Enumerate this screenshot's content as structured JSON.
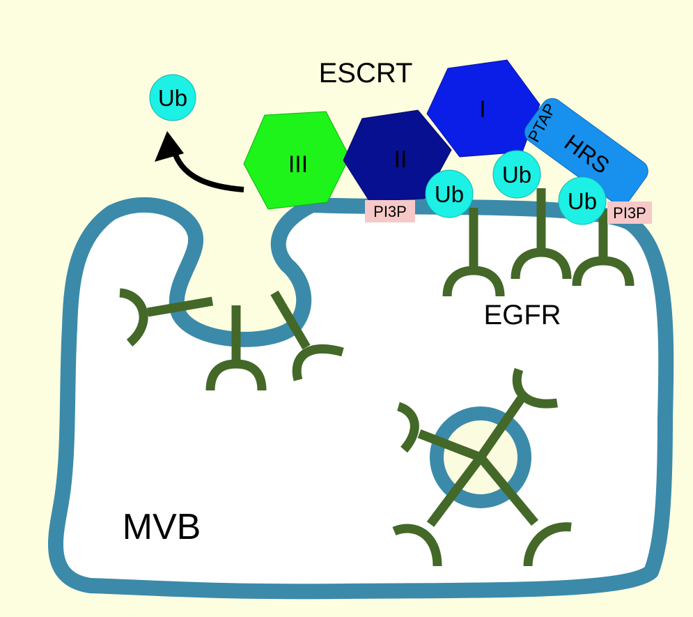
{
  "labels": {
    "escrt": "ESCRT",
    "egfr": "EGFR",
    "mvb": "MVB",
    "complex_i": "I",
    "complex_ii": "II",
    "complex_iii": "III",
    "hrs": "HRS",
    "ptap": "PTAP",
    "pi3p": "PI3P",
    "ub": "Ub"
  },
  "colors": {
    "background": "#fdfde0",
    "membrane": "#3b8aaa",
    "receptor": "#436828",
    "complex_i": "#0b1ee8",
    "complex_ii": "#071091",
    "complex_iii": "#1ef41a",
    "hrs": "#1890ee",
    "ubiquitin": "#1df0e4",
    "pi3p": "#f6c8c8",
    "vesicle_lumen": "#fbfbdf"
  }
}
